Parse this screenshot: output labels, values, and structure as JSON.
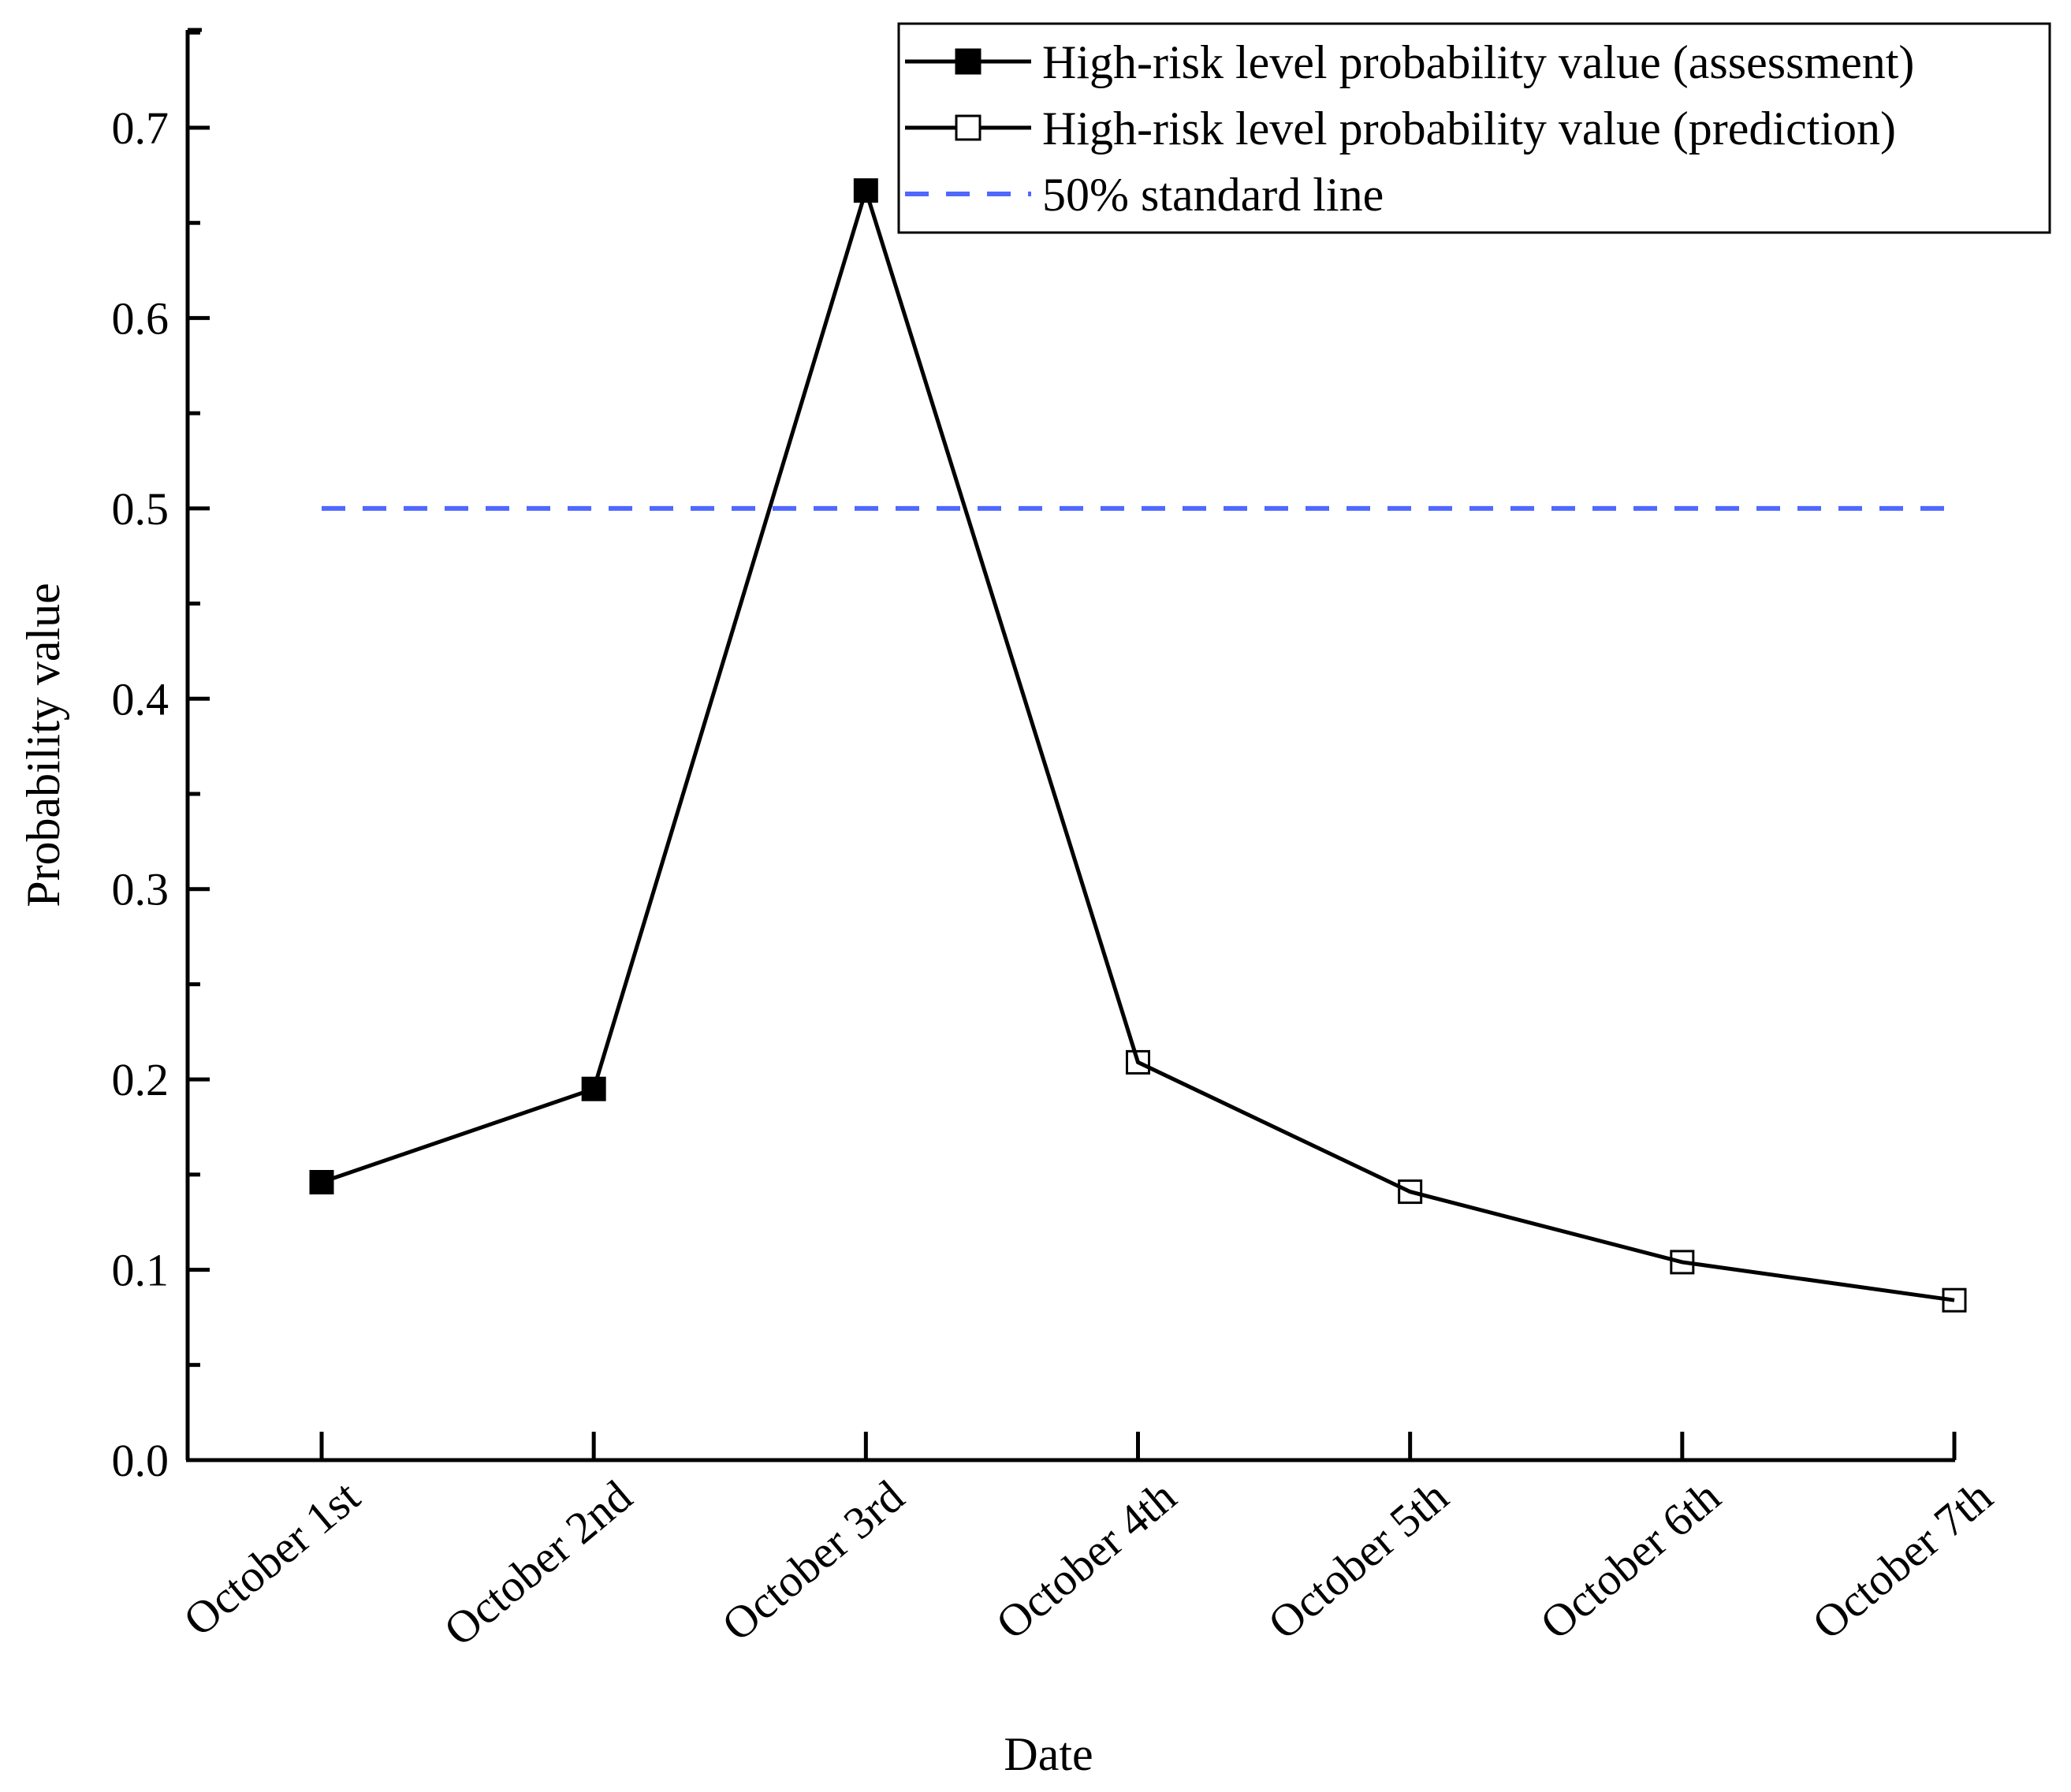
{
  "chart_data": {
    "type": "line",
    "title": "",
    "xlabel": "Date",
    "ylabel": "Probability value",
    "categories": [
      "October 1st",
      "October 2nd",
      "October 3rd",
      "October 4th",
      "October 5th",
      "October 6th",
      "October 7th"
    ],
    "ylim": [
      0.0,
      0.75
    ],
    "yticks": [
      0.0,
      0.1,
      0.2,
      0.3,
      0.4,
      0.5,
      0.6,
      0.7
    ],
    "ytick_labels": [
      "0.0",
      "0.1",
      "0.2",
      "0.3",
      "0.4",
      "0.5",
      "0.6",
      "0.7"
    ],
    "grid": false,
    "legend_position": "top-right",
    "series": [
      {
        "name": "High-risk level probability value (assessment)",
        "marker": "filled-square",
        "color": "#000000",
        "values": [
          0.146,
          0.195,
          0.667,
          null,
          null,
          null,
          null
        ]
      },
      {
        "name": "High-risk level probability value (prediction)",
        "marker": "hollow-square",
        "color": "#000000",
        "values": [
          null,
          null,
          0.667,
          0.209,
          0.141,
          0.104,
          0.084
        ]
      }
    ],
    "reference_lines": [
      {
        "name": "50% standard line",
        "y": 0.5,
        "style": "dashed",
        "color": "#4f68ff",
        "x_range": [
          "October 1st",
          "October 7th"
        ]
      }
    ]
  }
}
